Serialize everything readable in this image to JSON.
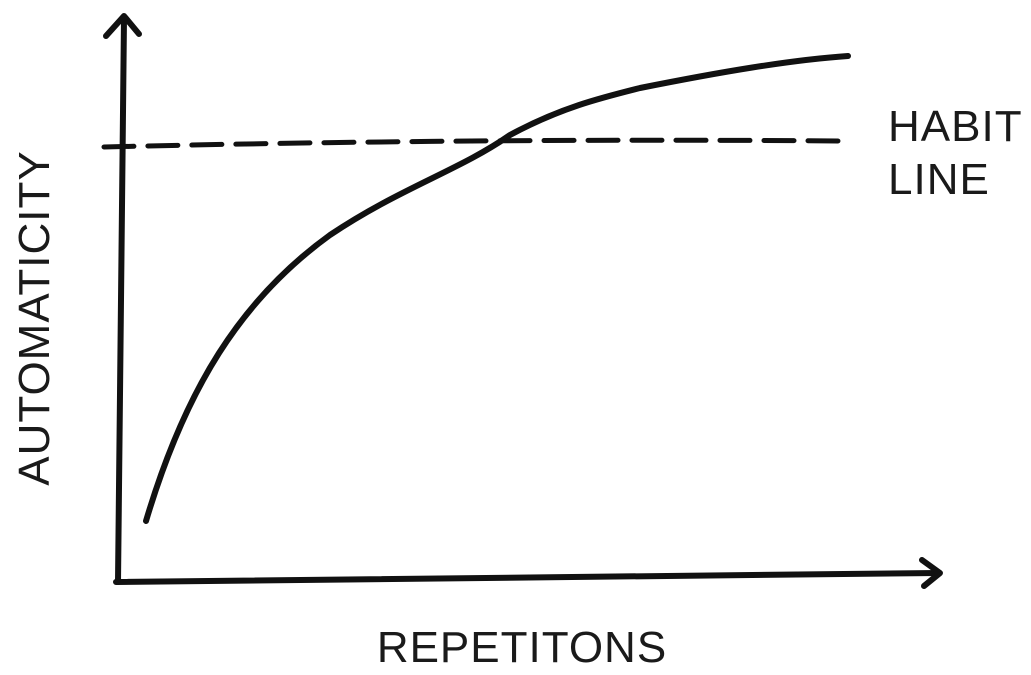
{
  "diagram": {
    "x_axis_label": "REPETITONS",
    "y_axis_label": "AUTOMATICITY",
    "threshold_label_line1": "HABIT",
    "threshold_label_line2": "LINE",
    "ink_color": "#111111"
  }
}
